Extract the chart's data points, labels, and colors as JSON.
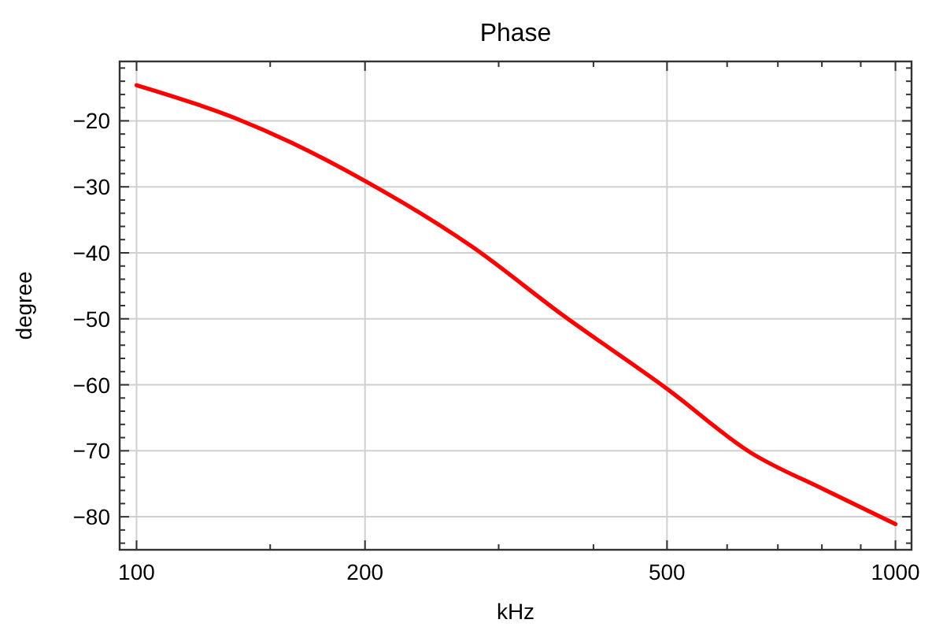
{
  "chart_data": {
    "type": "line",
    "title": "Phase",
    "xlabel": "kHz",
    "ylabel": "degree",
    "log": "x",
    "grid": true,
    "marker": "none",
    "line_style": "solid",
    "xlim": [
      95,
      1050
    ],
    "ylim": [
      -85,
      -11
    ],
    "xticks": [
      100,
      {
        "value": 150,
        "label": null
      },
      200,
      {
        "value": 300,
        "label": null
      },
      {
        "value": 400,
        "label": null
      },
      500,
      {
        "value": 600,
        "label": null
      },
      {
        "value": 700,
        "label": null
      },
      {
        "value": 800,
        "label": null
      },
      {
        "value": 900,
        "label": null
      },
      1000
    ],
    "yticks": [
      {
        "value": -84,
        "label": null
      },
      {
        "value": -82,
        "label": null
      },
      -80,
      {
        "value": -78,
        "label": null
      },
      {
        "value": -76,
        "label": null
      },
      {
        "value": -74,
        "label": null
      },
      {
        "value": -72,
        "label": null
      },
      -70,
      {
        "value": -68,
        "label": null
      },
      {
        "value": -66,
        "label": null
      },
      {
        "value": -64,
        "label": null
      },
      {
        "value": -62,
        "label": null
      },
      -60,
      {
        "value": -58,
        "label": null
      },
      {
        "value": -56,
        "label": null
      },
      {
        "value": -54,
        "label": null
      },
      {
        "value": -52,
        "label": null
      },
      -50,
      {
        "value": -48,
        "label": null
      },
      {
        "value": -46,
        "label": null
      },
      {
        "value": -44,
        "label": null
      },
      {
        "value": -42,
        "label": null
      },
      -40,
      {
        "value": -38,
        "label": null
      },
      {
        "value": -36,
        "label": null
      },
      {
        "value": -34,
        "label": null
      },
      {
        "value": -32,
        "label": null
      },
      -30,
      {
        "value": -28,
        "label": null
      },
      {
        "value": -26,
        "label": null
      },
      {
        "value": -24,
        "label": null
      },
      {
        "value": -22,
        "label": null
      },
      -20,
      {
        "value": -18,
        "label": null
      },
      {
        "value": -16,
        "label": null
      },
      {
        "value": -14,
        "label": null
      },
      {
        "value": -12,
        "label": null
      }
    ],
    "series": [
      {
        "color": "#ff0000",
        "x": [
          100,
          135,
          160,
          200,
          277,
          363,
          500,
          645,
          803,
          1000
        ],
        "values": [
          -14.6,
          -19.6,
          -23.3,
          -29.1,
          -39.1,
          -49.3,
          -60.6,
          -70.3,
          -75.8,
          -81.1
        ]
      }
    ]
  }
}
